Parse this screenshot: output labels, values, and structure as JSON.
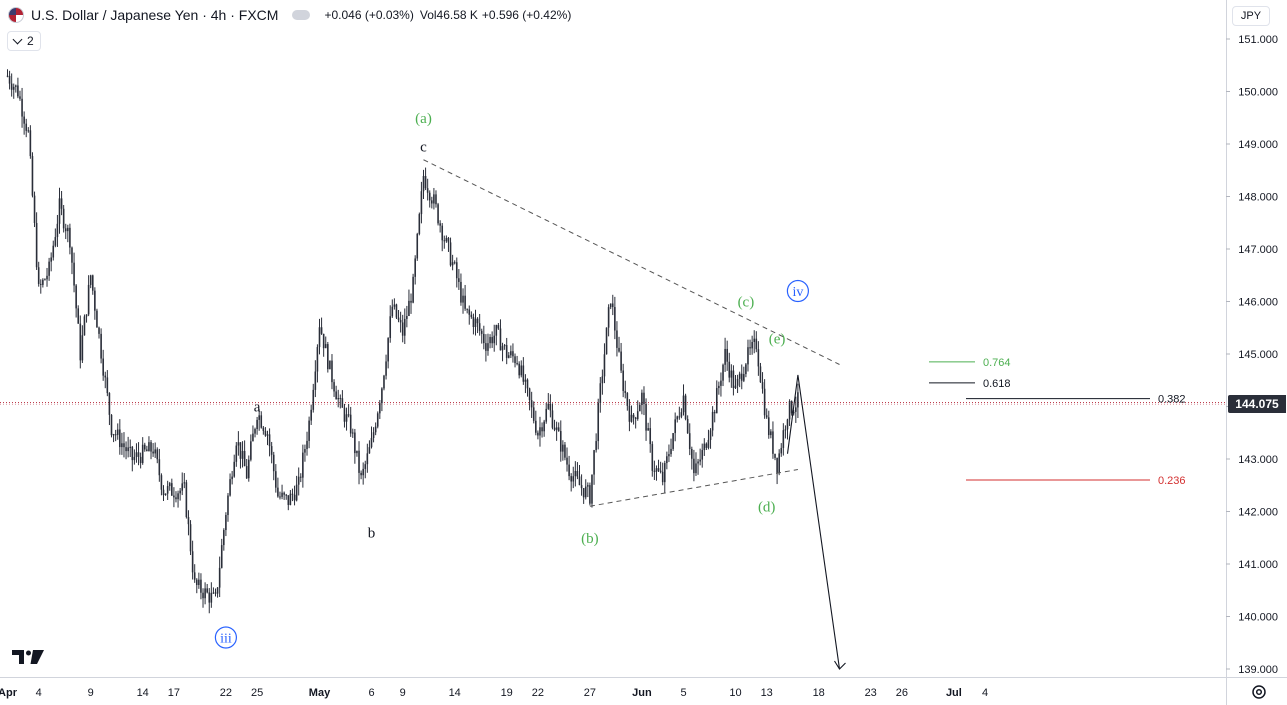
{
  "header": {
    "symbol_title": "U.S. Dollar / Japanese Yen · 4h · FXCM",
    "change": "+0.046 (+0.03%)",
    "volume": "Vol46.58 K",
    "volume_change": "+0.596 (+0.42%)",
    "indicator_count": "2",
    "currency": "JPY"
  },
  "price_axis": {
    "current_price": "144.075",
    "tick_labels": [
      "151.000",
      "150.000",
      "149.000",
      "148.000",
      "147.000",
      "146.000",
      "145.000",
      "144.000",
      "143.000",
      "142.000",
      "141.000",
      "140.000",
      "139.000"
    ]
  },
  "time_axis": {
    "tick_labels": [
      "Apr",
      "4",
      "9",
      "14",
      "17",
      "22",
      "25",
      "May",
      "6",
      "9",
      "14",
      "19",
      "22",
      "27",
      "Jun",
      "5",
      "10",
      "13",
      "18",
      "23",
      "26",
      "Jul",
      "4"
    ]
  },
  "colors": {
    "candle": "#2a2e39",
    "wave_green": "#4caf50",
    "wave_blue": "#2962ff",
    "fib_red": "#d32f2f",
    "price_line": "#b22234"
  },
  "annotations": {
    "wave_labels": [
      "(a)",
      "c",
      "a",
      "b",
      "(b)",
      "(c)",
      "(d)",
      "(e)",
      "iii",
      "iv"
    ],
    "fib_labels": [
      "0.764",
      "0.618",
      "0.382",
      "0.236"
    ]
  },
  "chart_data": {
    "type": "candlestick",
    "title": "U.S. Dollar / Japanese Yen · 4h · FXCM",
    "y_unit": "JPY",
    "ylim": [
      138.8,
      151.4
    ],
    "x_range": [
      "Apr 1",
      "Jul 5"
    ],
    "last_price": 144.075,
    "grid": false,
    "swing_path": [
      {
        "x": "Apr 1",
        "y": 150.3
      },
      {
        "x": "Apr 2",
        "y": 150.0
      },
      {
        "x": "Apr 3",
        "y": 149.2
      },
      {
        "x": "Apr 4",
        "y": 146.2
      },
      {
        "x": "Apr 5",
        "y": 146.6
      },
      {
        "x": "Apr 6",
        "y": 147.8
      },
      {
        "x": "Apr 7",
        "y": 147.2
      },
      {
        "x": "Apr 8",
        "y": 145.0
      },
      {
        "x": "Apr 9",
        "y": 146.5
      },
      {
        "x": "Apr 11",
        "y": 143.6
      },
      {
        "x": "Apr 13",
        "y": 143.0
      },
      {
        "x": "Apr 15",
        "y": 143.2
      },
      {
        "x": "Apr 16",
        "y": 142.4
      },
      {
        "x": "Apr 18",
        "y": 142.4
      },
      {
        "x": "Apr 19",
        "y": 140.6
      },
      {
        "x": "Apr 21",
        "y": 140.3
      },
      {
        "x": "Apr 22",
        "y": 142.0
      },
      {
        "x": "Apr 23",
        "y": 143.4
      },
      {
        "x": "Apr 24",
        "y": 142.7
      },
      {
        "x": "Apr 25",
        "y": 143.9
      },
      {
        "x": "Apr 26",
        "y": 143.5
      },
      {
        "x": "Apr 27",
        "y": 142.3
      },
      {
        "x": "Apr 28",
        "y": 142.2
      },
      {
        "x": "Apr 29",
        "y": 142.5
      },
      {
        "x": "Apr 30",
        "y": 143.7
      },
      {
        "x": "May 1",
        "y": 145.6
      },
      {
        "x": "May 2",
        "y": 144.7
      },
      {
        "x": "May 3",
        "y": 144.0
      },
      {
        "x": "May 4",
        "y": 143.6
      },
      {
        "x": "May 5",
        "y": 142.6
      },
      {
        "x": "May 6",
        "y": 143.3
      },
      {
        "x": "May 7",
        "y": 144.4
      },
      {
        "x": "May 8",
        "y": 145.9
      },
      {
        "x": "May 9",
        "y": 145.4
      },
      {
        "x": "May 10",
        "y": 146.3
      },
      {
        "x": "May 11",
        "y": 148.4
      },
      {
        "x": "May 12",
        "y": 147.9
      },
      {
        "x": "May 13",
        "y": 147.2
      },
      {
        "x": "May 14",
        "y": 146.6
      },
      {
        "x": "May 15",
        "y": 145.8
      },
      {
        "x": "May 16",
        "y": 145.6
      },
      {
        "x": "May 17",
        "y": 145.2
      },
      {
        "x": "May 18",
        "y": 145.4
      },
      {
        "x": "May 19",
        "y": 145.0
      },
      {
        "x": "May 20",
        "y": 144.9
      },
      {
        "x": "May 21",
        "y": 144.2
      },
      {
        "x": "May 22",
        "y": 143.5
      },
      {
        "x": "May 23",
        "y": 144.0
      },
      {
        "x": "May 24",
        "y": 143.4
      },
      {
        "x": "May 25",
        "y": 142.8
      },
      {
        "x": "May 26",
        "y": 142.5
      },
      {
        "x": "May 27",
        "y": 142.3
      },
      {
        "x": "May 28",
        "y": 144.3
      },
      {
        "x": "May 29",
        "y": 146.1
      },
      {
        "x": "May 30",
        "y": 144.6
      },
      {
        "x": "May 31",
        "y": 143.7
      },
      {
        "x": "Jun 1",
        "y": 144.2
      },
      {
        "x": "Jun 2",
        "y": 142.9
      },
      {
        "x": "Jun 3",
        "y": 142.6
      },
      {
        "x": "Jun 4",
        "y": 143.5
      },
      {
        "x": "Jun 5",
        "y": 144.2
      },
      {
        "x": "Jun 6",
        "y": 142.7
      },
      {
        "x": "Jun 7",
        "y": 143.2
      },
      {
        "x": "Jun 8",
        "y": 144.0
      },
      {
        "x": "Jun 9",
        "y": 145.0
      },
      {
        "x": "Jun 10",
        "y": 144.3
      },
      {
        "x": "Jun 11",
        "y": 144.9
      },
      {
        "x": "Jun 12",
        "y": 145.2
      },
      {
        "x": "Jun 13",
        "y": 143.7
      },
      {
        "x": "Jun 14",
        "y": 142.9
      },
      {
        "x": "Jun 15",
        "y": 143.9
      },
      {
        "x": "Jun 16",
        "y": 144.1
      }
    ],
    "drawings": {
      "triangle_upper": [
        {
          "x": "May 11",
          "y": 148.7
        },
        {
          "x": "Jun 20",
          "y": 144.8
        }
      ],
      "triangle_lower": [
        {
          "x": "May 27",
          "y": 142.1
        },
        {
          "x": "Jun 16",
          "y": 142.8
        }
      ],
      "projection_arrow": [
        {
          "x": "Jun 15",
          "y": 143.1
        },
        {
          "x": "Jun 16",
          "y": 144.6
        },
        {
          "x": "Jun 20",
          "y": 139.0
        }
      ]
    },
    "fib_levels": [
      {
        "label": "0.764",
        "price": 144.85,
        "color": "#4caf50"
      },
      {
        "label": "0.618",
        "price": 144.45,
        "color": "#131722"
      },
      {
        "label": "0.382",
        "price": 144.15,
        "color": "#131722"
      },
      {
        "label": "0.236",
        "price": 142.6,
        "color": "#d32f2f"
      }
    ],
    "wave_labels": [
      {
        "label": "(a)",
        "x": "May 11",
        "y": 149.5,
        "style": "green"
      },
      {
        "label": "c",
        "x": "May 11",
        "y": 148.95,
        "style": "black"
      },
      {
        "label": "a",
        "x": "Apr 25",
        "y": 144.0,
        "style": "black"
      },
      {
        "label": "b",
        "x": "May 6",
        "y": 141.6,
        "style": "black"
      },
      {
        "label": "(b)",
        "x": "May 27",
        "y": 141.5,
        "style": "green"
      },
      {
        "label": "(c)",
        "x": "Jun 11",
        "y": 146.0,
        "style": "green"
      },
      {
        "label": "(d)",
        "x": "Jun 13",
        "y": 142.1,
        "style": "green"
      },
      {
        "label": "(e)",
        "x": "Jun 14",
        "y": 145.3,
        "style": "green"
      },
      {
        "label": "iii",
        "x": "Apr 22",
        "y": 139.6,
        "style": "blue-circle"
      },
      {
        "label": "iv",
        "x": "Jun 16",
        "y": 146.2,
        "style": "blue-circle"
      }
    ]
  }
}
